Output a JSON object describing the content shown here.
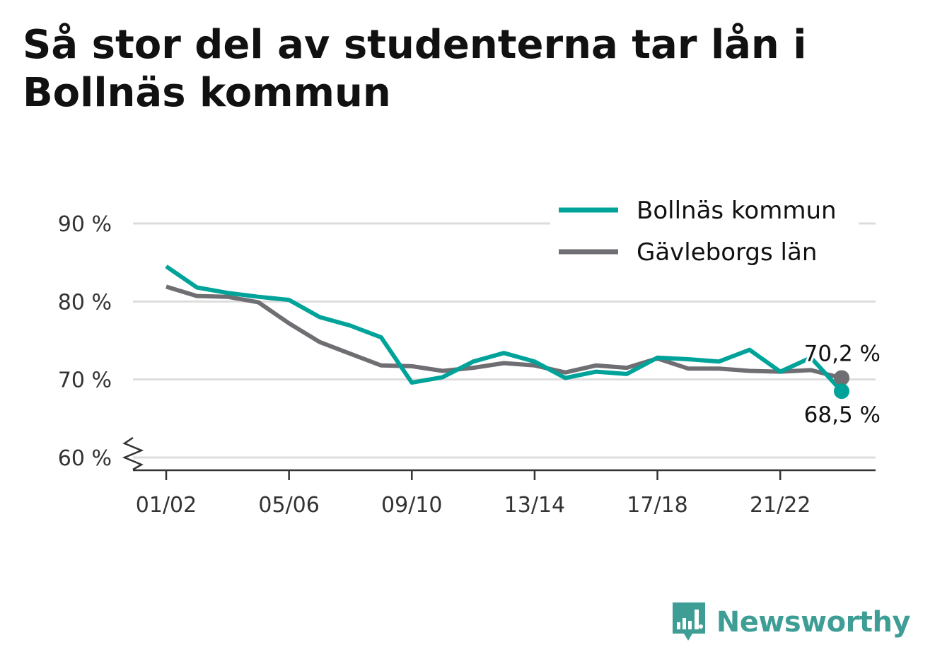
{
  "title": "Så stor del av studenterna tar lån i Bollnäs kommun",
  "brand": {
    "name": "Newsworthy",
    "color": "#3e9e96",
    "icon": "bar-chart-speech-bubble-icon"
  },
  "chart_data": {
    "type": "line",
    "title": "Så stor del av studenterna tar lån i Bollnäs kommun",
    "xlabel": "",
    "ylabel": "",
    "ylim": [
      60,
      90
    ],
    "y_ticks": [
      60,
      70,
      80,
      90
    ],
    "y_tick_labels": [
      "60 %",
      "70 %",
      "80 %",
      "90 %"
    ],
    "y_axis_break": true,
    "x_tick_labels": [
      "01/02",
      "05/06",
      "09/10",
      "13/14",
      "17/18",
      "21/22"
    ],
    "x_tick_indices": [
      0,
      4,
      8,
      12,
      16,
      20
    ],
    "x": [
      "01/02",
      "02/03",
      "03/04",
      "04/05",
      "05/06",
      "06/07",
      "07/08",
      "08/09",
      "09/10",
      "10/11",
      "11/12",
      "12/13",
      "13/14",
      "14/15",
      "15/16",
      "16/17",
      "17/18",
      "18/19",
      "19/20",
      "20/21",
      "21/22",
      "22/23",
      "23/24"
    ],
    "grid": true,
    "legend_position": "top-right",
    "series": [
      {
        "name": "Bollnäs kommun",
        "color": "#00a39a",
        "values": [
          84.5,
          81.8,
          81.1,
          80.6,
          80.2,
          78.0,
          76.9,
          75.4,
          69.6,
          70.3,
          72.3,
          73.4,
          72.3,
          70.2,
          71.0,
          70.7,
          72.8,
          72.6,
          72.3,
          73.8,
          71.0,
          72.8,
          68.5
        ],
        "end_label": "68,5 %"
      },
      {
        "name": "Gävleborgs län",
        "color": "#6e6e73",
        "values": [
          81.9,
          80.7,
          80.6,
          79.9,
          77.2,
          74.8,
          73.3,
          71.8,
          71.7,
          71.1,
          71.5,
          72.1,
          71.8,
          70.9,
          71.8,
          71.5,
          72.7,
          71.4,
          71.4,
          71.1,
          71.0,
          71.2,
          70.2
        ],
        "end_label": "70,2 %"
      }
    ]
  }
}
